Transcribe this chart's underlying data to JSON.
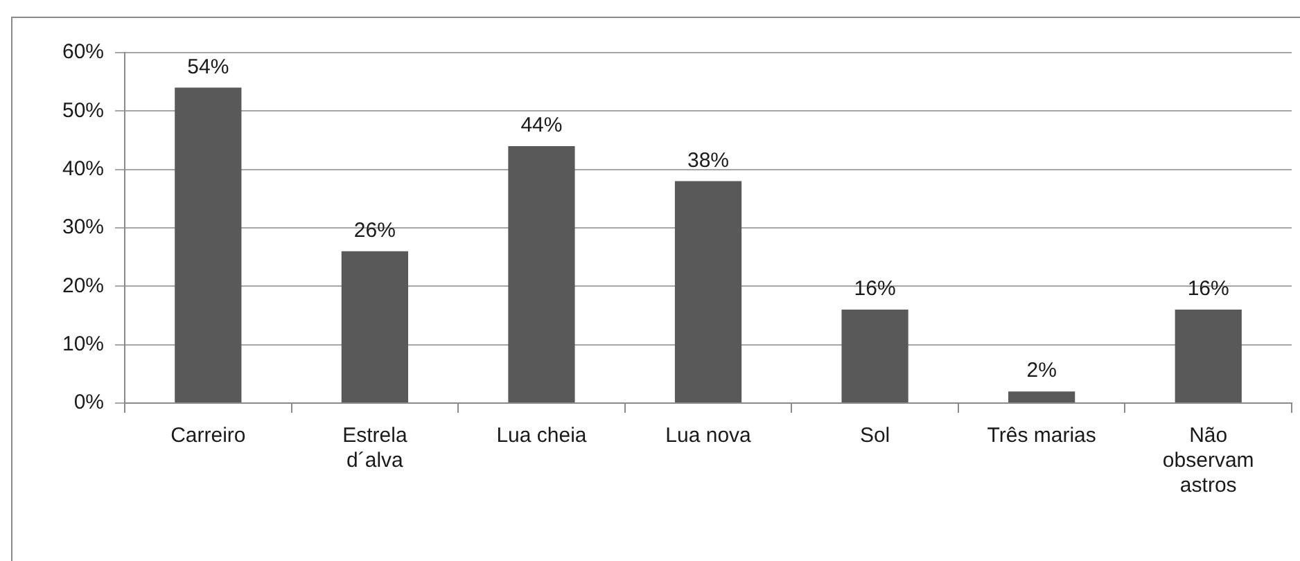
{
  "chart_data": {
    "type": "bar",
    "categories": [
      "Carreiro",
      "Estrela d´alva",
      "Lua cheia",
      "Lua nova",
      "Sol",
      "Três marias",
      "Não observam astros"
    ],
    "values": [
      54,
      26,
      44,
      38,
      16,
      2,
      16
    ],
    "color": "#595959",
    "value_labels": [
      "54%",
      "26%",
      "44%",
      "38%",
      "16%",
      "2%",
      "16%"
    ],
    "ylim": [
      0,
      60
    ],
    "yticks": [
      {
        "value": 0,
        "label": "0%"
      },
      {
        "value": 10,
        "label": "10%"
      },
      {
        "value": 20,
        "label": "20%"
      },
      {
        "value": 30,
        "label": "30%"
      },
      {
        "value": 40,
        "label": "40%"
      },
      {
        "value": 50,
        "label": "50%"
      },
      {
        "value": 60,
        "label": "60%"
      }
    ],
    "grid": "y"
  }
}
